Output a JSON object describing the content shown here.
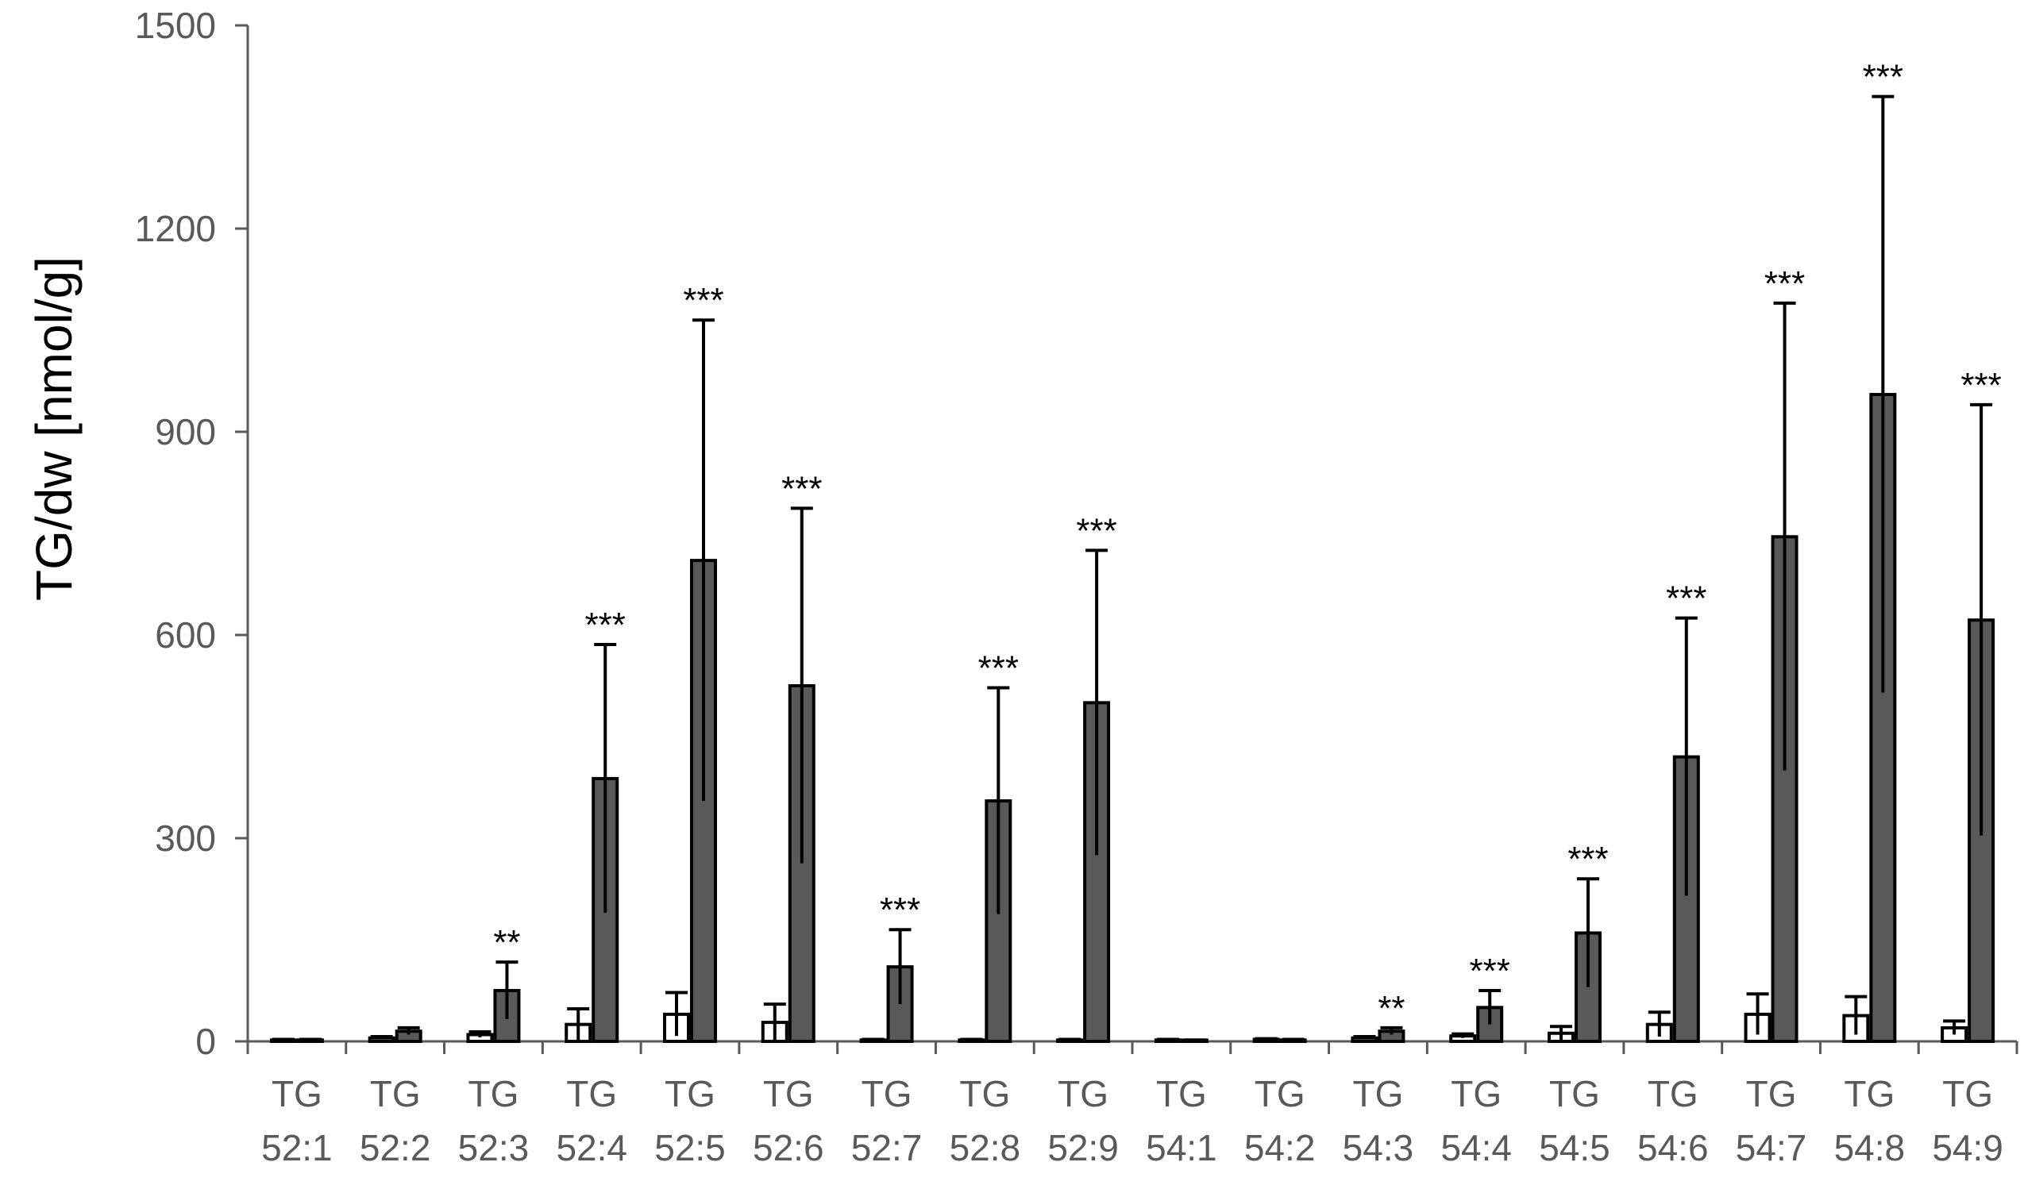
{
  "chart_data": {
    "type": "bar",
    "xlabel": "",
    "ylabel": "TG/dw [nmol/g]",
    "ylim": [
      0,
      1500
    ],
    "yticks": [
      0,
      300,
      600,
      900,
      1200,
      1500
    ],
    "grid": false,
    "legend": "none",
    "categories": [
      [
        "TG",
        "52:1"
      ],
      [
        "TG",
        "52:2"
      ],
      [
        "TG",
        "52:3"
      ],
      [
        "TG",
        "52:4"
      ],
      [
        "TG",
        "52:5"
      ],
      [
        "TG",
        "52:6"
      ],
      [
        "TG",
        "52:7"
      ],
      [
        "TG",
        "52:8"
      ],
      [
        "TG",
        "52:9"
      ],
      [
        "TG",
        "54:1"
      ],
      [
        "TG",
        "54:2"
      ],
      [
        "TG",
        "54:3"
      ],
      [
        "TG",
        "54:4"
      ],
      [
        "TG",
        "54:5"
      ],
      [
        "TG",
        "54:6"
      ],
      [
        "TG",
        "54:7"
      ],
      [
        "TG",
        "54:8"
      ],
      [
        "TG",
        "54:9"
      ]
    ],
    "series": [
      {
        "fill": "#ffffff",
        "values": [
          2,
          5,
          10,
          25,
          40,
          28,
          2,
          2,
          2,
          2,
          3,
          5,
          8,
          12,
          25,
          40,
          38,
          20
        ],
        "errors": [
          1,
          2,
          4,
          23,
          32,
          27,
          1,
          1,
          1,
          1,
          1,
          2,
          3,
          10,
          18,
          30,
          28,
          10
        ]
      },
      {
        "fill": "#595959",
        "values": [
          2,
          15,
          75,
          388,
          710,
          525,
          110,
          355,
          500,
          1,
          2,
          15,
          50,
          160,
          420,
          745,
          955,
          622
        ],
        "errors": [
          1,
          5,
          42,
          198,
          355,
          262,
          55,
          167,
          225,
          1,
          1,
          5,
          25,
          80,
          205,
          345,
          440,
          318
        ],
        "significance": [
          "",
          "",
          "**",
          "***",
          "***",
          "***",
          "***",
          "***",
          "***",
          "",
          "",
          "**",
          "***",
          "***",
          "***",
          "***",
          "***",
          "***"
        ]
      }
    ]
  },
  "colors": {
    "axis": "#595959",
    "tick_text": "#595959",
    "bar_edge": "#000000",
    "title_text": "#000000"
  }
}
